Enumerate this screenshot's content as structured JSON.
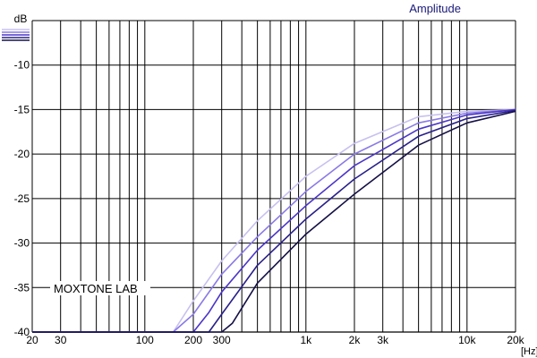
{
  "chart_data": {
    "type": "line",
    "title": "Amplitude",
    "ylabel": "dB",
    "xunit": "[Hz]",
    "annotation": "MOXTONE LAB",
    "xscale": "log",
    "xlim": [
      20,
      20000
    ],
    "ylim": [
      -40,
      -5
    ],
    "grid": true,
    "legend": "none",
    "x_tick_labels": [
      {
        "value": 20,
        "label": "20"
      },
      {
        "value": 30,
        "label": "30"
      },
      {
        "value": 100,
        "label": "100"
      },
      {
        "value": 200,
        "label": "200"
      },
      {
        "value": 300,
        "label": "300"
      },
      {
        "value": 1000,
        "label": "1k"
      },
      {
        "value": 2000,
        "label": "2k"
      },
      {
        "value": 3000,
        "label": "3k"
      },
      {
        "value": 10000,
        "label": "10k"
      },
      {
        "value": 20000,
        "label": "20k"
      }
    ],
    "y_ticks": [
      {
        "value": -10,
        "label": "-10"
      },
      {
        "value": -15,
        "label": "-15"
      },
      {
        "value": -20,
        "label": "-20"
      },
      {
        "value": -25,
        "label": "-25"
      },
      {
        "value": -30,
        "label": "-30"
      },
      {
        "value": -35,
        "label": "-35"
      },
      {
        "value": -40,
        "label": "-40"
      }
    ],
    "series": [
      {
        "color": "#c8c0f0",
        "x": [
          20,
          100,
          150,
          200,
          300,
          500,
          1000,
          2000,
          5000,
          10000,
          20000
        ],
        "y": [
          -40,
          -40,
          -40,
          -36.5,
          -32,
          -27.5,
          -22.5,
          -18.8,
          -15.8,
          -15.2,
          -15
        ]
      },
      {
        "color": "#8a7ae6",
        "x": [
          20,
          150,
          200,
          300,
          500,
          1000,
          2000,
          5000,
          10000,
          20000
        ],
        "y": [
          -40,
          -40,
          -38,
          -33.5,
          -29.3,
          -24.2,
          -20,
          -16.5,
          -15.4,
          -15
        ]
      },
      {
        "color": "#4b35c8",
        "x": [
          20,
          200,
          250,
          300,
          500,
          1000,
          2000,
          5000,
          10000,
          20000
        ],
        "y": [
          -40,
          -40,
          -37.8,
          -35.5,
          -30.8,
          -25.8,
          -21.3,
          -17.2,
          -15.6,
          -15
        ]
      },
      {
        "color": "#28208a",
        "x": [
          20,
          250,
          300,
          500,
          1000,
          2000,
          5000,
          10000,
          20000
        ],
        "y": [
          -40,
          -40,
          -38,
          -32.5,
          -27.3,
          -22.8,
          -18,
          -16,
          -15.1
        ]
      },
      {
        "color": "#141046",
        "x": [
          20,
          300,
          350,
          500,
          1000,
          2000,
          5000,
          10000,
          20000
        ],
        "y": [
          -40,
          -40,
          -39,
          -34.5,
          -29,
          -24.5,
          -19,
          -16.5,
          -15.2
        ]
      }
    ]
  }
}
